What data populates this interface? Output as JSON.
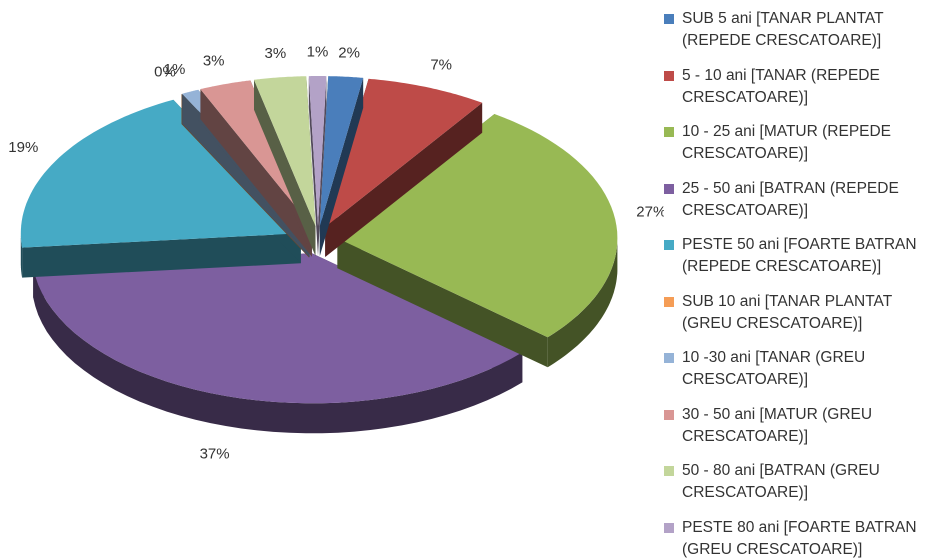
{
  "chart_data": {
    "type": "pie",
    "categories": [
      "SUB 5 ani [TANAR PLANTAT (REPEDE CRESCATOARE)]",
      "5 - 10 ani [TANAR (REPEDE CRESCATOARE)]",
      "10 - 25 ani [MATUR (REPEDE CRESCATOARE)]",
      "25 - 50 ani [BATRAN (REPEDE CRESCATOARE)]",
      "PESTE 50 ani [FOARTE BATRAN (REPEDE CRESCATOARE)]",
      "SUB 10 ani [TANAR PLANTAT (GREU CRESCATOARE)]",
      "10 -30 ani [TANAR (GREU CRESCATOARE)]",
      "30 - 50 ani [MATUR (GREU CRESCATOARE)]",
      "50 - 80 ani [BATRAN (GREU CRESCATOARE)]",
      "PESTE 80 ani [FOARTE BATRAN (GREU CRESCATOARE)]"
    ],
    "values": [
      2,
      7,
      27,
      37,
      19,
      0,
      1,
      3,
      3,
      1
    ],
    "value_labels": [
      "2%",
      "7%",
      "27%",
      "37%",
      "19%",
      "0%",
      "1%",
      "3%",
      "3%",
      "1%"
    ],
    "colors": [
      "#4a7ebb",
      "#be4b48",
      "#98b954",
      "#7d5fa0",
      "#46aac5",
      "#f59d56",
      "#95b3d7",
      "#d99694",
      "#c3d69b",
      "#b3a2c7"
    ],
    "legend": "right"
  }
}
